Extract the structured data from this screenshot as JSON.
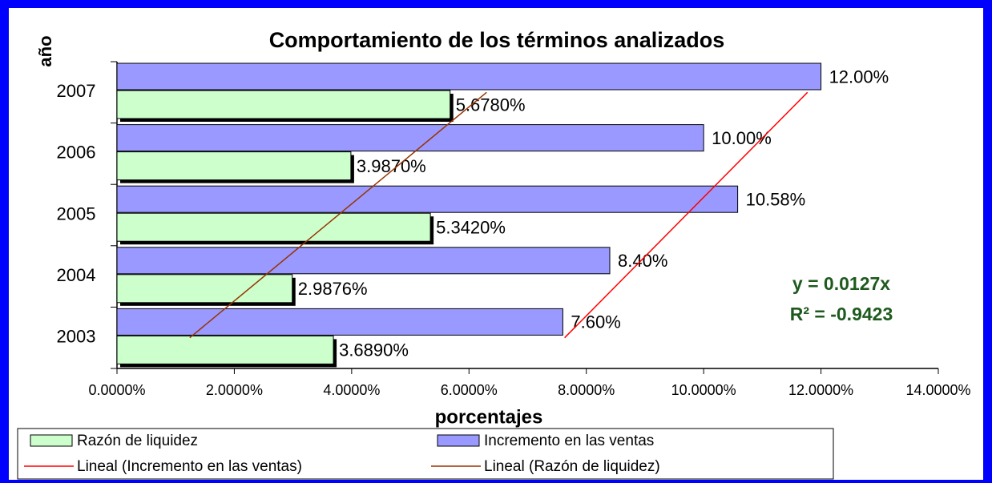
{
  "chart_data": {
    "type": "hbar",
    "title": "Comportamiento de los términos analizados",
    "y_label": "año",
    "x_label": "porcentajes",
    "categories": [
      "2003",
      "2004",
      "2005",
      "2006",
      "2007"
    ],
    "series": [
      {
        "name": "Razón de liquidez",
        "color": "#ccffcc",
        "values": [
          3.689,
          2.9876,
          5.342,
          3.987,
          5.678
        ],
        "value_labels": [
          "3.6890%",
          "2.9876%",
          "5.3420%",
          "3.9870%",
          "5.6780%"
        ]
      },
      {
        "name": "Incremento en las ventas",
        "color": "#9999ff",
        "values": [
          7.6,
          8.4,
          10.58,
          10.0,
          12.0
        ],
        "value_labels": [
          "7.60%",
          "8.40%",
          "10.58%",
          "10.00%",
          "12.00%"
        ]
      }
    ],
    "trendlines": [
      {
        "name": "Lineal (Incremento en las ventas)",
        "color": "#ff0000",
        "values": [
          7.63,
          11.77
        ]
      },
      {
        "name": "Lineal (Razón de liquidez)",
        "color": "#993300",
        "values": [
          1.24,
          6.3
        ]
      }
    ],
    "annotations": [
      "y = 0.0127x",
      "R² = -0.9423"
    ],
    "annotation_color": "#1e5a1e",
    "xlim": [
      0,
      14
    ],
    "xticks": [
      {
        "value": 0,
        "label": "0.0000%"
      },
      {
        "value": 2,
        "label": "2.0000%"
      },
      {
        "value": 4,
        "label": "4.0000%"
      },
      {
        "value": 6,
        "label": "6.0000%"
      },
      {
        "value": 8,
        "label": "8.0000%"
      },
      {
        "value": 10,
        "label": "10.0000%"
      },
      {
        "value": 12,
        "label": "12.0000%"
      },
      {
        "value": 14,
        "label": "14.0000%"
      }
    ],
    "grid": false,
    "legend": "bottom"
  }
}
